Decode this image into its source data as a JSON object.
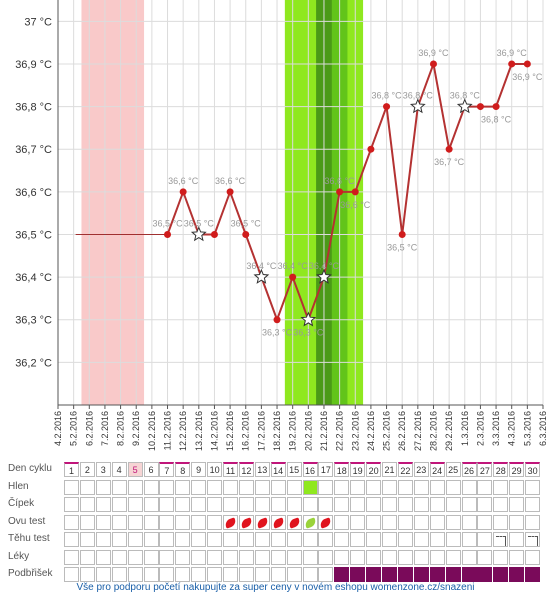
{
  "chart_data": {
    "type": "line",
    "y_ticks": [
      "36,2 °C",
      "36,3 °C",
      "36,4 °C",
      "36,5 °C",
      "36,6 °C",
      "36,7 °C",
      "36,8 °C",
      "36,9 °C",
      "37 °C"
    ],
    "ylim": [
      36.1,
      37.05
    ],
    "x_dates": [
      "4.2.2016",
      "5.2.2016",
      "6.2.2016",
      "7.2.2016",
      "8.2.2016",
      "9.2.2016",
      "10.2.2016",
      "11.2.2016",
      "12.2.2016",
      "13.2.2016",
      "14.2.2016",
      "15.2.2016",
      "16.2.2016",
      "17.2.2016",
      "18.2.2016",
      "19.2.2016",
      "20.2.2016",
      "21.2.2016",
      "22.2.2016",
      "23.2.2016",
      "24.2.2016",
      "25.2.2016",
      "26.2.2016",
      "27.2.2016",
      "28.2.2016",
      "29.2.2016",
      "1.3.2016",
      "2.3.2016",
      "3.3.2016",
      "4.3.2016",
      "5.3.2016",
      "6.3.2016"
    ],
    "series": [
      {
        "values": [
          {
            "date": "11.2.2016",
            "y": 36.5
          },
          {
            "date": "12.2.2016",
            "y": 36.6
          },
          {
            "date": "13.2.2016",
            "y": 36.5,
            "marker": "star"
          },
          {
            "date": "14.2.2016",
            "y": 36.5
          },
          {
            "date": "15.2.2016",
            "y": 36.6
          },
          {
            "date": "16.2.2016",
            "y": 36.5
          },
          {
            "date": "17.2.2016",
            "y": 36.4,
            "marker": "star"
          },
          {
            "date": "18.2.2016",
            "y": 36.3
          },
          {
            "date": "19.2.2016",
            "y": 36.4
          },
          {
            "date": "20.2.2016",
            "y": 36.3,
            "marker": "star"
          },
          {
            "date": "21.2.2016",
            "y": 36.4,
            "marker": "star"
          },
          {
            "date": "22.2.2016",
            "y": 36.6
          },
          {
            "date": "23.2.2016",
            "y": 36.6
          },
          {
            "date": "24.2.2016",
            "y": 36.7
          },
          {
            "date": "25.2.2016",
            "y": 36.8
          },
          {
            "date": "26.2.2016",
            "y": 36.5
          },
          {
            "date": "27.2.2016",
            "y": 36.8,
            "marker": "star"
          },
          {
            "date": "28.2.2016",
            "y": 36.9
          },
          {
            "date": "29.2.2016",
            "y": 36.7
          },
          {
            "date": "1.3.2016",
            "y": 36.8,
            "marker": "star"
          },
          {
            "date": "2.3.2016",
            "y": 36.8
          },
          {
            "date": "3.3.2016",
            "y": 36.8
          },
          {
            "date": "4.3.2016",
            "y": 36.9
          },
          {
            "date": "5.3.2016",
            "y": 36.9
          }
        ]
      }
    ],
    "baseline": {
      "from": "5.2.2016",
      "to": "11.2.2016",
      "y": 36.5
    },
    "data_labels": [
      {
        "date": "11.2.2016",
        "y": 36.5,
        "text": "36,5 °C",
        "pos": "above"
      },
      {
        "date": "12.2.2016",
        "y": 36.6,
        "text": "36,6 °C",
        "pos": "above"
      },
      {
        "date": "13.2.2016",
        "y": 36.5,
        "text": "36,5 °C",
        "pos": "above"
      },
      {
        "date": "15.2.2016",
        "y": 36.6,
        "text": "36,6 °C",
        "pos": "above"
      },
      {
        "date": "16.2.2016",
        "y": 36.5,
        "text": "36,5 °C",
        "pos": "above"
      },
      {
        "date": "17.2.2016",
        "y": 36.4,
        "text": "36,4 °C",
        "pos": "above"
      },
      {
        "date": "18.2.2016",
        "y": 36.3,
        "text": "36,3 °C",
        "pos": "below"
      },
      {
        "date": "19.2.2016",
        "y": 36.4,
        "text": "36,4 °C",
        "pos": "above"
      },
      {
        "date": "20.2.2016",
        "y": 36.3,
        "text": "36,3 °C",
        "pos": "below"
      },
      {
        "date": "21.2.2016",
        "y": 36.4,
        "text": "36,4 °C",
        "pos": "above"
      },
      {
        "date": "22.2.2016",
        "y": 36.6,
        "text": "36,6 °C",
        "pos": "above"
      },
      {
        "date": "23.2.2016",
        "y": 36.6,
        "text": "36,6 °C",
        "pos": "below"
      },
      {
        "date": "25.2.2016",
        "y": 36.8,
        "text": "36,8 °C",
        "pos": "above"
      },
      {
        "date": "26.2.2016",
        "y": 36.5,
        "text": "36,5 °C",
        "pos": "below"
      },
      {
        "date": "27.2.2016",
        "y": 36.8,
        "text": "36,8 °C",
        "pos": "above"
      },
      {
        "date": "28.2.2016",
        "y": 36.9,
        "text": "36,9 °C",
        "pos": "above"
      },
      {
        "date": "29.2.2016",
        "y": 36.7,
        "text": "36,7 °C",
        "pos": "below"
      },
      {
        "date": "1.3.2016",
        "y": 36.8,
        "text": "36,8 °C",
        "pos": "above"
      },
      {
        "date": "3.3.2016",
        "y": 36.8,
        "text": "36,8 °C",
        "pos": "below"
      },
      {
        "date": "4.3.2016",
        "y": 36.9,
        "text": "36,9 °C",
        "pos": "above"
      },
      {
        "date": "5.3.2016",
        "y": 36.9,
        "text": "36,9 °C",
        "pos": "below"
      }
    ],
    "bands": [
      {
        "from": "5.2.2016",
        "to": "9.2.2016",
        "color": "#f9c9c9",
        "label": "menstruation"
      },
      {
        "from": "18.2.2016",
        "to": "23.2.2016",
        "color": "#8fe81f",
        "label": "fertile"
      },
      {
        "from": "20.2.2016",
        "to": "22.2.2016",
        "color": "#62c41a",
        "label": "fertile-peak"
      },
      {
        "from": "20.2.2016",
        "to": "21.2.2016",
        "color": "#4b9a17",
        "label": "ovulation"
      }
    ],
    "grid": true
  },
  "table": {
    "row_labels": [
      "Den cyklu",
      "Hlen",
      "Čípek",
      "Ovu test",
      "Těhu test",
      "Léky",
      "Podbřišek"
    ],
    "days": [
      "1",
      "2",
      "3",
      "4",
      "5",
      "6",
      "7",
      "8",
      "9",
      "10",
      "11",
      "12",
      "13",
      "14",
      "15",
      "16",
      "17",
      "18",
      "19",
      "20",
      "21",
      "22",
      "23",
      "24",
      "25",
      "26",
      "27",
      "28",
      "29",
      "30"
    ],
    "highlight_day": "5",
    "hlen_days": [
      16
    ],
    "ovu_test": [
      {
        "day": 11,
        "result": "positive"
      },
      {
        "day": 12,
        "result": "positive"
      },
      {
        "day": 13,
        "result": "positive"
      },
      {
        "day": 14,
        "result": "positive"
      },
      {
        "day": 15,
        "result": "positive"
      },
      {
        "day": 16,
        "result": "green"
      },
      {
        "day": 17,
        "result": "positive"
      }
    ],
    "tehu_test_days": [
      28,
      30
    ],
    "podbrisek_days": [
      18,
      19,
      20,
      21,
      22,
      23,
      24,
      25,
      26,
      27,
      28,
      29,
      30
    ],
    "colors": {
      "ovu_positive": "#e0141e",
      "ovu_green": "#9ad33a",
      "hlen": "#8fe81f",
      "podbrisek": "#7a0a5a",
      "day_marker": "#c0157a"
    }
  },
  "footer": "Vše pro podporu početí nakupujte za super ceny v novém eshopu womenzone.cz/snazeni"
}
